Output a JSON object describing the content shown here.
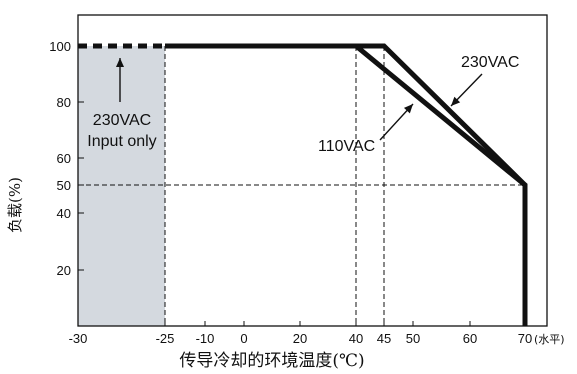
{
  "chart_data": {
    "type": "line",
    "xlabel": "传导冷却的环境温度(℃)",
    "ylabel": "负载(%)",
    "xlim": [
      -30,
      75
    ],
    "ylim": [
      0,
      110
    ],
    "x_ticks": [
      "-30",
      "-25",
      "-10",
      "0",
      "20",
      "40",
      "45",
      "50",
      "60",
      "70"
    ],
    "x_tick_values": [
      -30,
      -25,
      -10,
      0,
      20,
      40,
      45,
      50,
      60,
      70
    ],
    "x_unit": "(水平)",
    "y_ticks": [
      "20",
      "40",
      "50",
      "60",
      "80",
      "100"
    ],
    "y_tick_values": [
      20,
      40,
      50,
      60,
      80,
      100
    ],
    "shaded_region": {
      "x": [
        -30,
        -25
      ],
      "note": "230VAC Input only"
    },
    "series": [
      {
        "name": "230VAC",
        "x": [
          -30,
          -25,
          45,
          70,
          70
        ],
        "y": [
          100,
          100,
          100,
          50,
          0
        ],
        "dashed_segment": [
          -30,
          -25
        ]
      },
      {
        "name": "110VAC",
        "x": [
          -25,
          40,
          70,
          70
        ],
        "y": [
          100,
          100,
          50,
          0
        ]
      }
    ],
    "annotations": [
      {
        "label": "230VAC",
        "target": "230VAC curve"
      },
      {
        "label": "110VAC",
        "target": "110VAC curve"
      },
      {
        "label_lines": [
          "230VAC",
          "Input only"
        ],
        "target": "shaded region"
      }
    ],
    "reference_lines": {
      "x": [
        -25,
        40,
        45
      ],
      "y": [
        50
      ]
    }
  }
}
